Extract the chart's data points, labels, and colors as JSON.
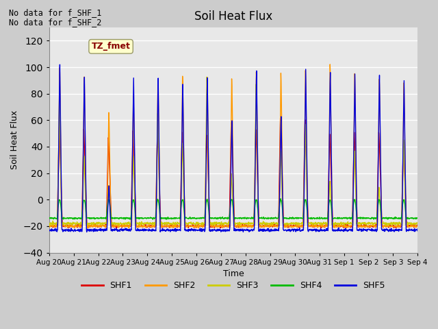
{
  "title": "Soil Heat Flux",
  "xlabel": "Time",
  "ylabel": "Soil Heat Flux",
  "annotation_line1": "No data for f_SHF_1",
  "annotation_line2": "No data for f_SHF_2",
  "legend_label": "TZ_fmet",
  "series_names": [
    "SHF1",
    "SHF2",
    "SHF3",
    "SHF4",
    "SHF5"
  ],
  "series_colors": [
    "#dd0000",
    "#ff9900",
    "#cccc00",
    "#00bb00",
    "#0000dd"
  ],
  "ylim": [
    -40,
    130
  ],
  "yticks": [
    -40,
    -20,
    0,
    20,
    40,
    60,
    80,
    100,
    120
  ],
  "xtick_labels": [
    "Aug 20",
    "Aug 21",
    "Aug 22",
    "Aug 23",
    "Aug 24",
    "Aug 25",
    "Aug 26",
    "Aug 27",
    "Aug 28",
    "Aug 29",
    "Aug 30",
    "Aug 31",
    "Sep 1",
    "Sep 2",
    "Sep 3",
    "Sep 4"
  ],
  "background_color": "#e8e8e8",
  "grid_color": "#ffffff",
  "legend_box_color": "#ffffcc",
  "legend_text_color": "#880000",
  "fig_bg": "#cccccc",
  "shf1_peaks": [
    58,
    56,
    50,
    55,
    56,
    54,
    52,
    62,
    56,
    65,
    64,
    53,
    55,
    54,
    45
  ],
  "shf2_peaks": [
    105,
    97,
    70,
    82,
    97,
    98,
    97,
    96,
    101,
    100,
    102,
    107,
    100,
    96,
    92
  ],
  "shf3_peaks": [
    79,
    36,
    12,
    35,
    68,
    45,
    97,
    20,
    91,
    39,
    60,
    15,
    40,
    10,
    48
  ],
  "shf4_night": -14,
  "shf5_peaks": [
    106,
    96,
    11,
    95,
    95,
    90,
    95,
    63,
    101,
    66,
    102,
    100,
    99,
    97,
    93
  ]
}
